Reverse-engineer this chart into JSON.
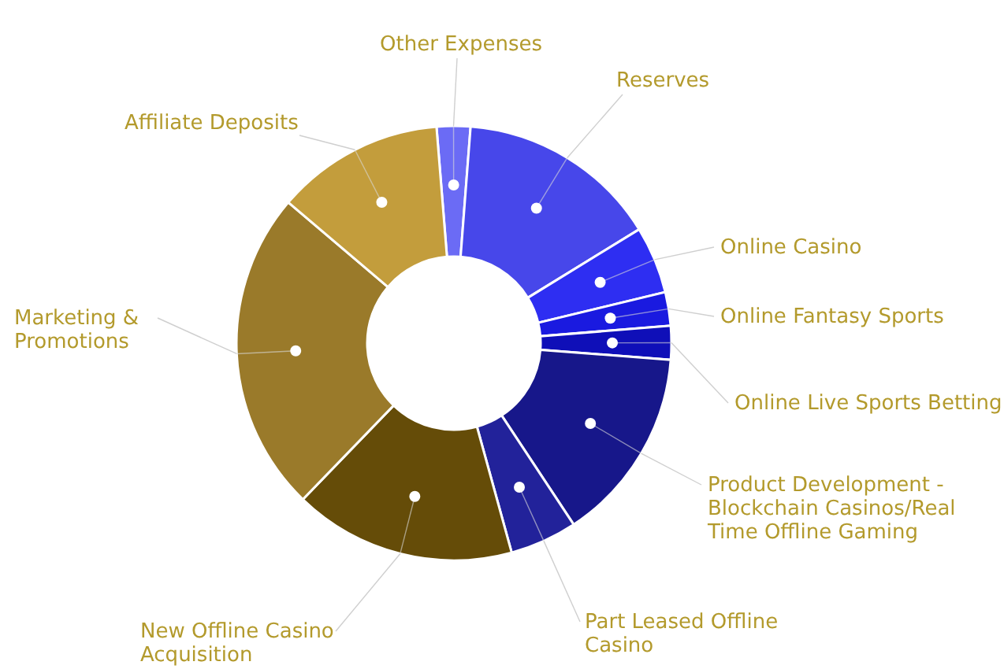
{
  "chart_data": {
    "type": "donut",
    "categories": [
      "Other Expenses",
      "Reserves",
      "Online Casino",
      "Online Fantasy Sports",
      "Online Live Sports Betting",
      "Product Development - Blockchain Casinos/Real Time Offline Gaming",
      "Part Leased Offline Casino",
      "New Offline Casino Acquisition",
      "Marketing & Promotions",
      "Affiliate Deposits"
    ],
    "values": [
      2.5,
      15,
      5,
      2.5,
      2.5,
      14.5,
      5,
      16.5,
      24,
      12.5
    ],
    "colors": [
      "#6b6bf5",
      "#4747ea",
      "#2e2ef2",
      "#1a1ae0",
      "#0f0fb8",
      "#17178a",
      "#22229a",
      "#654c08",
      "#9a7a2a",
      "#c39d3c"
    ]
  }
}
